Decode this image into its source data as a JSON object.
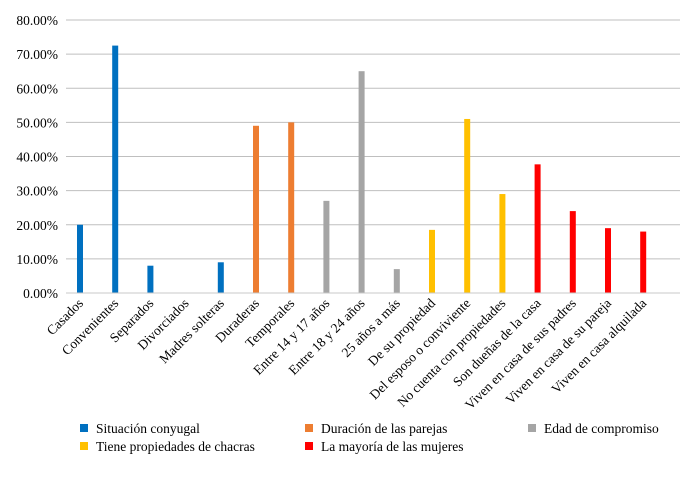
{
  "chart_data": {
    "type": "bar",
    "ylim": [
      0,
      80
    ],
    "yticks": [
      0,
      10,
      20,
      30,
      40,
      50,
      60,
      70,
      80
    ],
    "ytick_labels": [
      "0.00%",
      "10.00%",
      "20.00%",
      "30.00%",
      "40.00%",
      "50.00%",
      "60.00%",
      "70.00%",
      "80.00%"
    ],
    "grid": true,
    "legend_position": "bottom",
    "categories": [
      "Casados",
      "Convenientes",
      "Separados",
      "Divorciados",
      "Madres solteras",
      "Duraderas",
      "Temporales",
      "Entre 14 y 17 años",
      "Entre 18 y 24 años",
      "25 años a más",
      "De su propiedad",
      "Del esposo o conviviente",
      "No cuenta con propiedades",
      "Son dueñas de la casa",
      "Viven en casa de sus padres",
      "Viven en casa de su pareja",
      "Viven en casa alquilada"
    ],
    "series": [
      {
        "name": "Situación conyugal",
        "color": "#0070C0",
        "values": [
          20,
          72.5,
          8,
          0,
          9,
          null,
          null,
          null,
          null,
          null,
          null,
          null,
          null,
          null,
          null,
          null,
          null
        ]
      },
      {
        "name": "Duración de las parejas",
        "color": "#ED7D31",
        "values": [
          null,
          null,
          null,
          null,
          null,
          49,
          50,
          null,
          null,
          null,
          null,
          null,
          null,
          null,
          null,
          null,
          null
        ]
      },
      {
        "name": "Edad de compromiso",
        "color": "#A5A5A5",
        "values": [
          null,
          null,
          null,
          null,
          null,
          null,
          null,
          27,
          65,
          7,
          null,
          null,
          null,
          null,
          null,
          null,
          null
        ]
      },
      {
        "name": "Tiene propiedades de chacras",
        "color": "#FFC000",
        "values": [
          null,
          null,
          null,
          null,
          null,
          null,
          null,
          null,
          null,
          null,
          18.5,
          51,
          29,
          null,
          null,
          null,
          null
        ]
      },
      {
        "name": "La mayoría de las mujeres",
        "color": "#FF0000",
        "values": [
          null,
          null,
          null,
          null,
          null,
          null,
          null,
          null,
          null,
          null,
          null,
          null,
          null,
          37.7,
          24,
          19,
          18
        ]
      }
    ]
  }
}
